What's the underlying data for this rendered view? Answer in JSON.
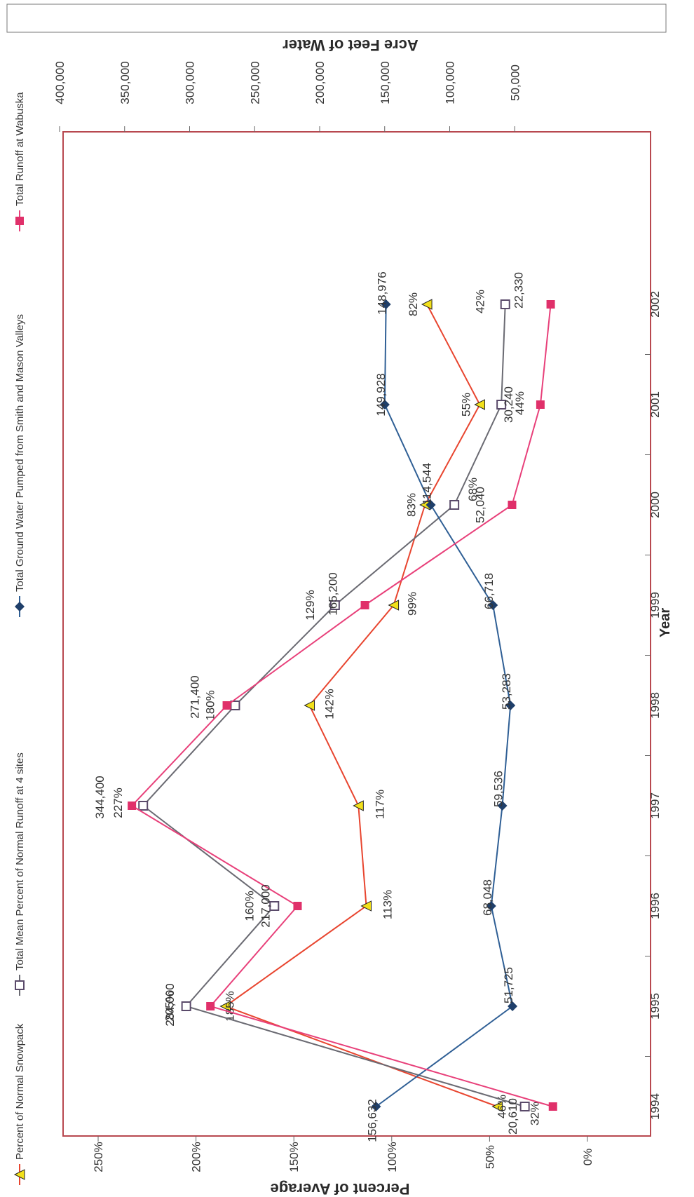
{
  "chart_data": {
    "type": "line",
    "xlabel": "Year",
    "ylabel": "Percent of Average",
    "y2label": "Acre Feet of Water",
    "x": [
      "1994",
      "1995",
      "1996",
      "1997",
      "1998",
      "1999",
      "2000",
      "2001",
      "2002"
    ],
    "ylim": [
      0,
      250
    ],
    "y_ticks": [
      0,
      50,
      100,
      150,
      200,
      250
    ],
    "y_tick_labels": [
      "0%",
      "50%",
      "100%",
      "150%",
      "200%",
      "250%"
    ],
    "y2lim": [
      0,
      400000
    ],
    "y2_ticks": [
      50000,
      100000,
      150000,
      200000,
      250000,
      300000,
      350000,
      400000
    ],
    "y2_tick_labels": [
      "50,000",
      "100,000",
      "150,000",
      "200,000",
      "250,000",
      "300,000",
      "350,000",
      "400,000"
    ],
    "series": [
      {
        "name": "Percent of Normal Snowpack",
        "axis": "left",
        "color": "#e8452f",
        "marker": "triangle",
        "marker_color": "#f2e01a",
        "values": [
          46,
          185,
          113,
          117,
          142,
          99,
          83,
          55,
          82
        ],
        "labels": [
          "46%",
          "185%",
          "113%",
          "117%",
          "142%",
          "99%",
          "83%",
          "55%",
          "82%"
        ]
      },
      {
        "name": "Total Mean Percent of Normal Runoff at 4 sites",
        "axis": "left",
        "color": "#6a6a72",
        "marker": "open-square",
        "marker_color": "#5a4a6a",
        "values": [
          32,
          205,
          160,
          227,
          180,
          129,
          68,
          44,
          42
        ],
        "labels": [
          "32%",
          "205%",
          "160%",
          "227%",
          "180%",
          "129%",
          "68%",
          "44%",
          "42%"
        ]
      },
      {
        "name": "Total Ground Water Pumped from Smith and Mason Valleys",
        "axis": "right",
        "color": "#2f5f95",
        "marker": "diamond",
        "marker_color": "#1f3f6a",
        "values": [
          156632,
          51725,
          68048,
          59536,
          53283,
          66718,
          114544,
          149928,
          148976
        ],
        "labels": [
          "156,632",
          "51,725",
          "68,048",
          "59,536",
          "53,283",
          "66,718",
          "114,544",
          "149,928",
          "148,976"
        ]
      },
      {
        "name": "Total Runoff at Wabuska",
        "axis": "right",
        "color": "#e8407a",
        "marker": "square",
        "marker_color": "#e0306a",
        "values": [
          20610,
          284000,
          217000,
          344400,
          271400,
          165200,
          52040,
          30240,
          22330
        ],
        "labels": [
          "20,610",
          "284,000",
          "217,000",
          "344,400",
          "271,400",
          "165,200",
          "52,040",
          "30,240",
          "22,330"
        ]
      }
    ],
    "legend_position": "top",
    "grid": false,
    "orientation": "rotated-90",
    "frame_color": "#b8484f"
  }
}
